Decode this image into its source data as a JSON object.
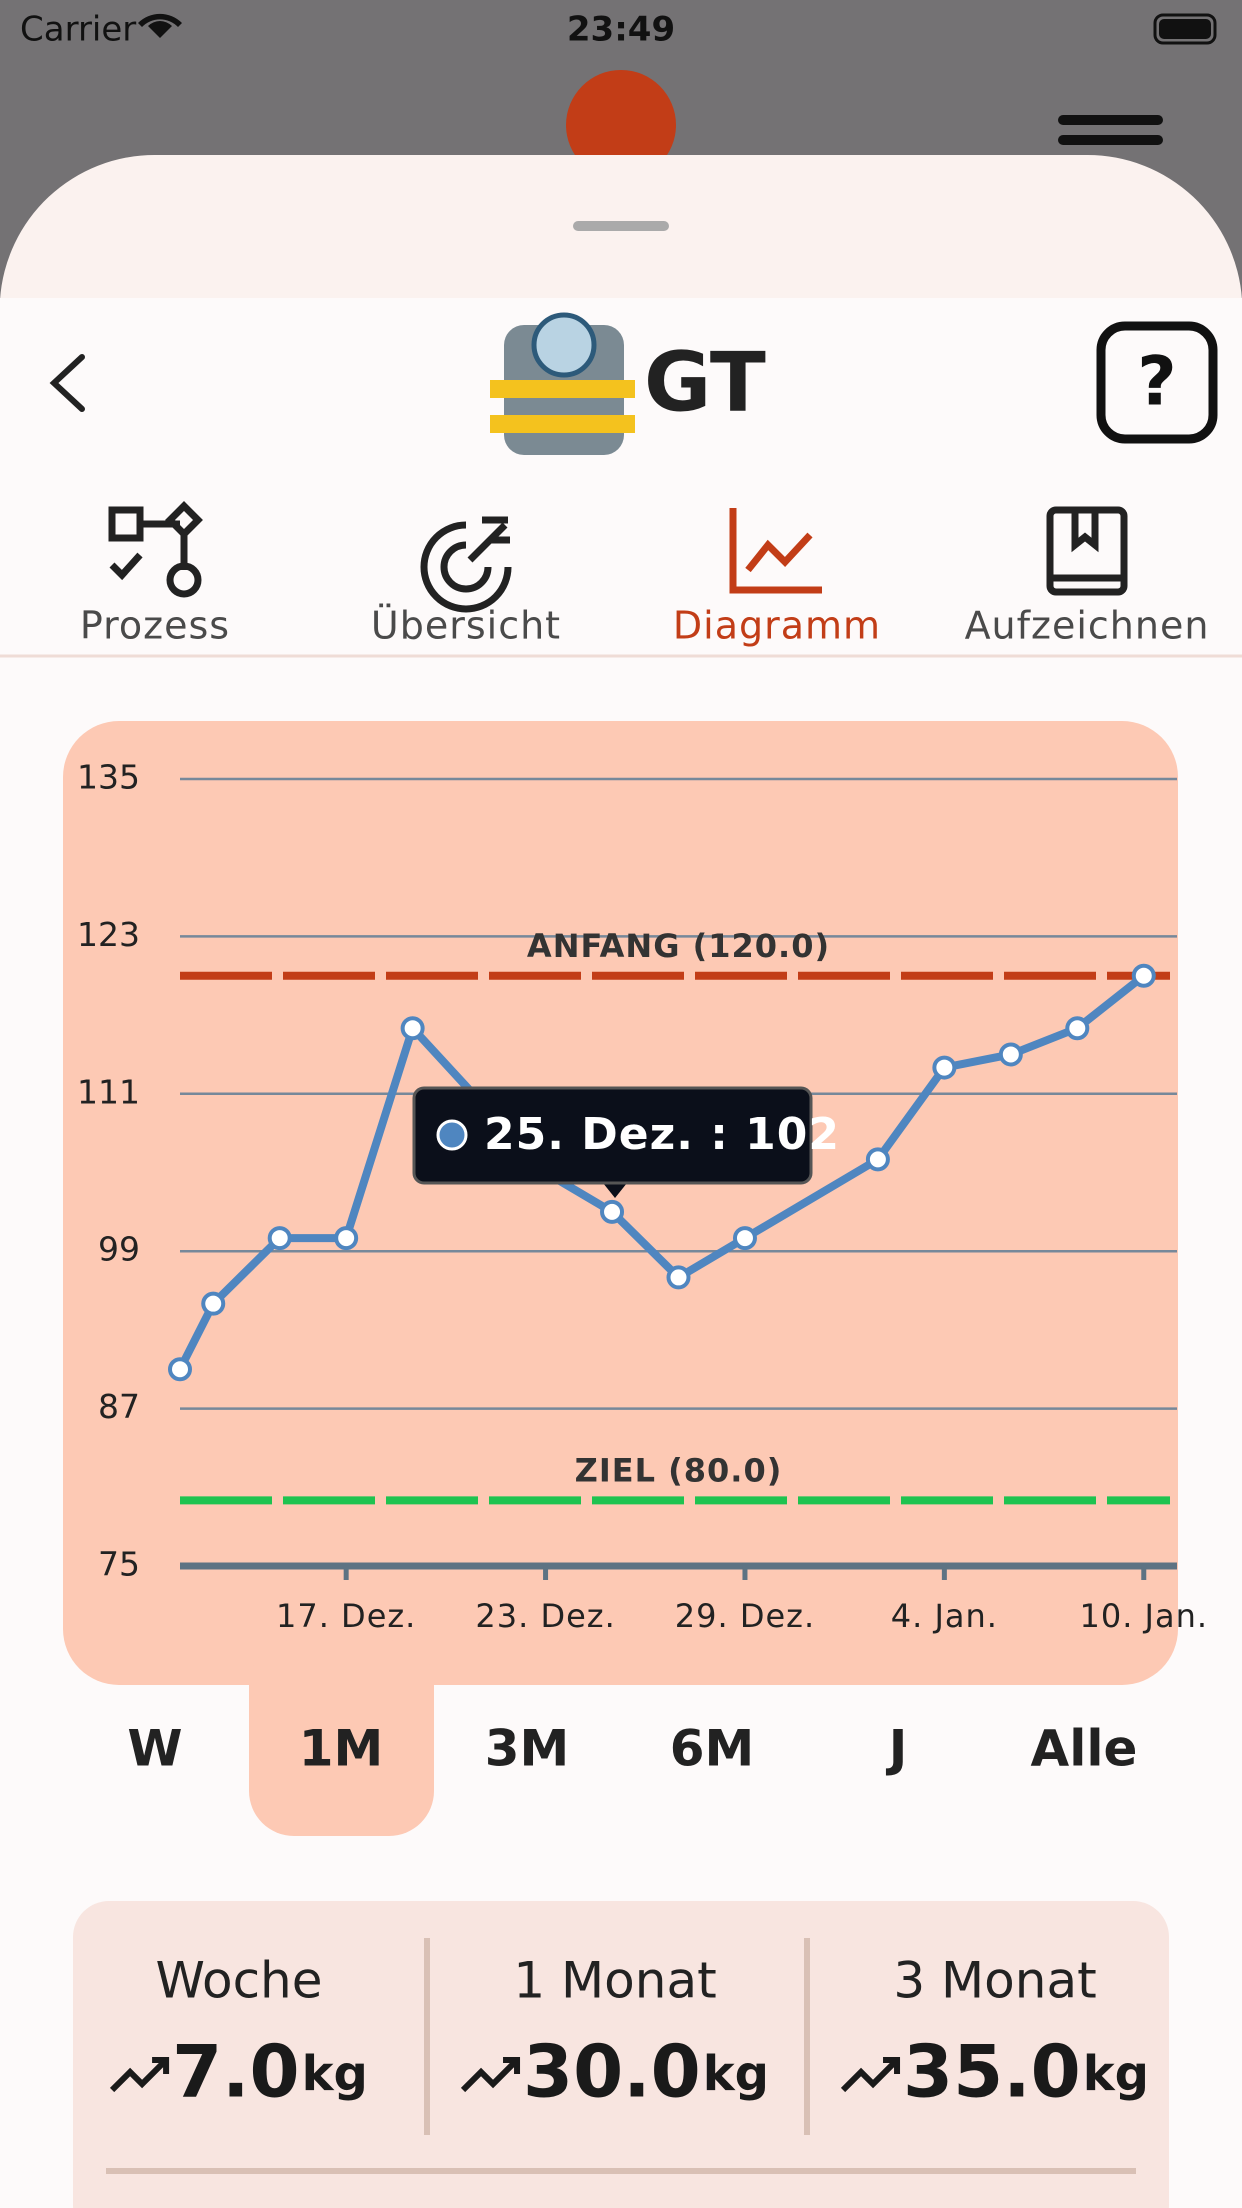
{
  "status_bar": {
    "carrier": "Carrier",
    "time": "23:49"
  },
  "header": {
    "title": "GT"
  },
  "tabs": [
    {
      "label": "Prozess"
    },
    {
      "label": "Übersicht"
    },
    {
      "label": "Diagramm"
    },
    {
      "label": "Aufzeichnen"
    }
  ],
  "active_tab": 2,
  "chart_data": {
    "type": "line",
    "x": [
      "12. Dez.",
      "13. Dez.",
      "15. Dez.",
      "17. Dez.",
      "19. Dez.",
      "23. Dez.",
      "25. Dez.",
      "27. Dez.",
      "29. Dez.",
      "2. Jan.",
      "4. Jan.",
      "6. Jan.",
      "8. Jan.",
      "10. Jan."
    ],
    "values": [
      90,
      95,
      100,
      100,
      116,
      105,
      102,
      97,
      100,
      106,
      113,
      114,
      116,
      120
    ],
    "color": "#4f86c0",
    "xlim": [
      "12. Dez.",
      "11. Jan."
    ],
    "xticks": [
      "17. Dez.",
      "23. Dez.",
      "29. Dez.",
      "4. Jan.",
      "10. Jan."
    ],
    "ylim": [
      75,
      135
    ],
    "yticks": [
      75,
      87,
      99,
      111,
      123,
      135
    ],
    "grid": true,
    "reference_lines": [
      {
        "label": "ANFANG (120.0)",
        "value": 120,
        "color": "#c23d17"
      },
      {
        "label": "ZIEL (80.0)",
        "value": 80,
        "color": "#1ec350"
      }
    ],
    "tooltip": "25. Dez. : 102"
  },
  "ranges": [
    "W",
    "1M",
    "3M",
    "6M",
    "J",
    "Alle"
  ],
  "active_range": 1,
  "stats": [
    {
      "label": "Woche",
      "value": "7.0",
      "unit": "kg"
    },
    {
      "label": "1 Monat",
      "value": "30.0",
      "unit": "kg"
    },
    {
      "label": "3 Monat",
      "value": "35.0",
      "unit": "kg"
    }
  ]
}
